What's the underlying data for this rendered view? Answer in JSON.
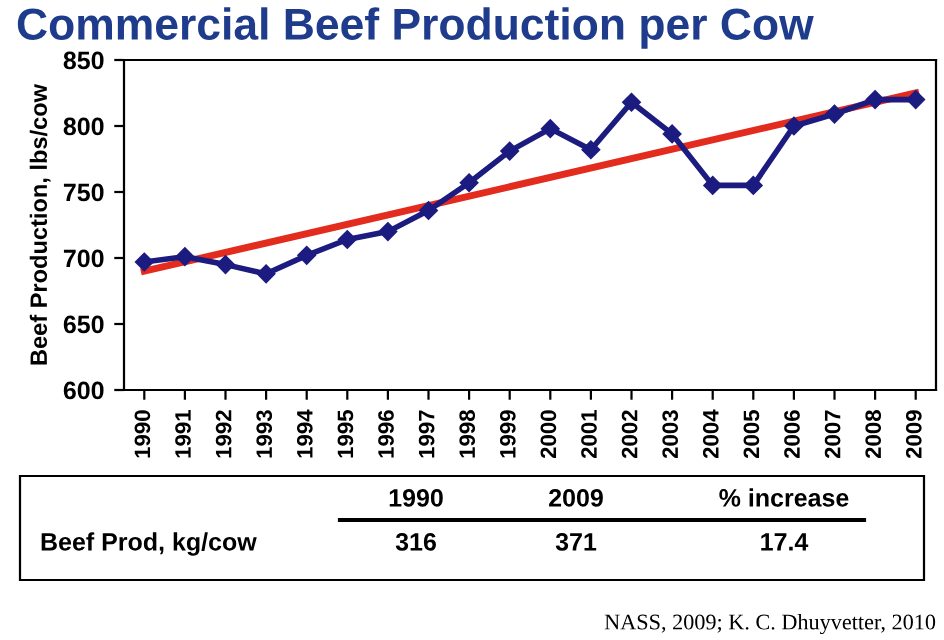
{
  "chart_data": {
    "type": "line",
    "title": "Commercial Beef Production per Cow",
    "ylabel": "Beef Production, lbs/cow",
    "categories": [
      "1990",
      "1991",
      "1992",
      "1993",
      "1994",
      "1995",
      "1996",
      "1997",
      "1998",
      "1999",
      "2000",
      "2001",
      "2002",
      "2003",
      "2004",
      "2005",
      "2006",
      "2007",
      "2008",
      "2009"
    ],
    "series": [
      {
        "color": "#1b1b80",
        "marker": "diamond",
        "values": [
          697,
          701,
          695,
          688,
          702,
          714,
          720,
          736,
          757,
          781,
          798,
          782,
          818,
          794,
          755,
          755,
          800,
          809,
          820,
          820
        ]
      },
      {
        "type": "line",
        "color": "#e32b1e",
        "marker": "none",
        "values": [
          690,
          null,
          null,
          null,
          null,
          null,
          null,
          null,
          null,
          null,
          null,
          null,
          null,
          null,
          null,
          null,
          null,
          null,
          null,
          825
        ]
      }
    ],
    "ylim": [
      600,
      850
    ],
    "yticks": [
      600,
      650,
      700,
      750,
      800,
      850
    ],
    "grid": false,
    "legend": false,
    "annotations": [
      "NASS, 2009; K. C. Dhuyvetter, 2010",
      "1990",
      "2009",
      "% increase",
      "Beef Prod, kg/cow",
      "316",
      "371",
      "17.4"
    ]
  }
}
